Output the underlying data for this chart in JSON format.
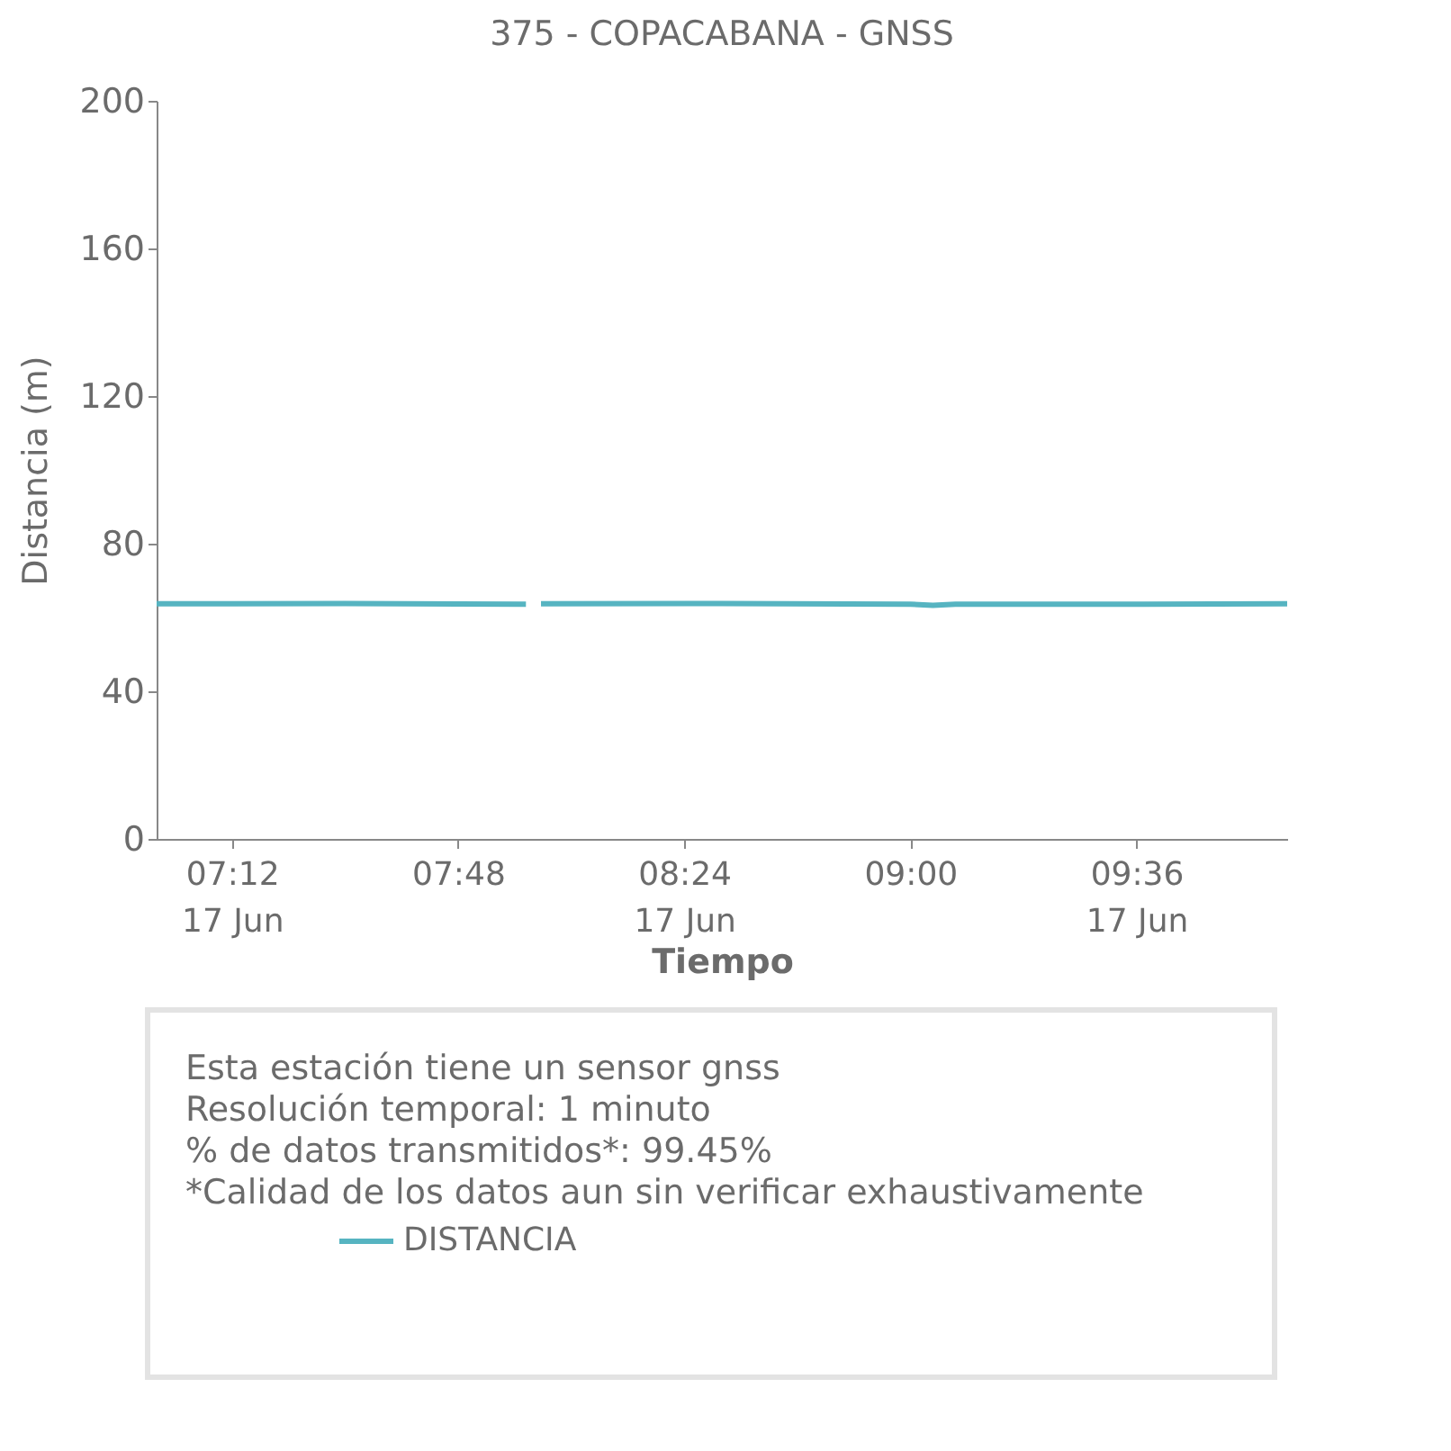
{
  "chart_data": {
    "type": "line",
    "title": "375 - COPACABANA - GNSS",
    "xlabel": "Tiempo",
    "ylabel": "Distancia (m)",
    "x": [
      7.0,
      7.5,
      7.98,
      8.0,
      8.02,
      8.5,
      9.0,
      9.06,
      9.12,
      9.5,
      10.0
    ],
    "series": [
      {
        "name": "DISTANCIA",
        "color": "#56b4c1",
        "values": [
          63.7,
          63.8,
          63.6,
          null,
          63.7,
          63.8,
          63.6,
          63.3,
          63.6,
          63.6,
          63.7
        ]
      }
    ],
    "xlim": [
      7.0,
      10.0
    ],
    "xticks": [
      {
        "value": 7.2,
        "label": "07:12\n17 Jun"
      },
      {
        "value": 7.8,
        "label": "07:48"
      },
      {
        "value": 8.4,
        "label": "08:24\n17 Jun"
      },
      {
        "value": 9.0,
        "label": "09:00"
      },
      {
        "value": 9.6,
        "label": "09:36\n17 Jun"
      }
    ],
    "ylim": [
      0,
      200
    ],
    "yticks": [
      0,
      40,
      80,
      120,
      160,
      200
    ],
    "annotations": [
      "Esta estación tiene un sensor gnss",
      "Resolución temporal: 1 minuto",
      "% de datos transmitidos*: 99.45%",
      "*Calidad de los datos aun sin verificar exhaustivamente"
    ],
    "legend": "bottom",
    "grid": false,
    "marker": "none",
    "line_style": "solid"
  }
}
